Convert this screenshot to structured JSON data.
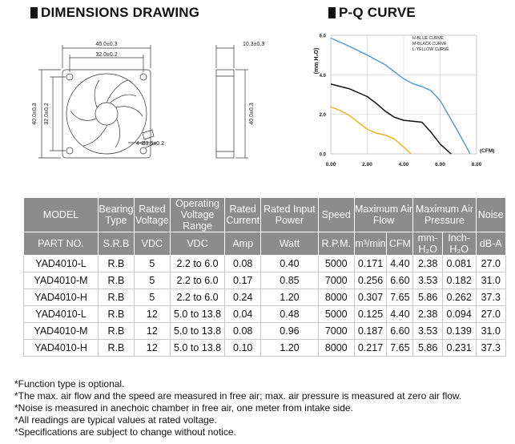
{
  "dimensions": {
    "title": "DIMENSIONS DRAWING",
    "front": {
      "outer_width": "40.0±0.3",
      "hole_spacing": "32.0±0.2",
      "outer_height": "40.0±0.3",
      "hole_spacing_v": "32.0±0.2",
      "holes": "4-Ø3.5±0.2"
    },
    "side": {
      "thickness": "10.3±0.3",
      "height": "40.0±0.3"
    }
  },
  "pq": {
    "title": "P-Q CURVE",
    "ylabel": "(mm H₂O)",
    "xlabel": "(CFM)",
    "y_ticks": [
      "6.0",
      "4.0",
      "2.0",
      "0.0"
    ],
    "x_ticks": [
      "0.00",
      "2.00",
      "4.00",
      "6.00",
      "8.00"
    ],
    "legend": [
      "H-BLUE CURVE",
      "M-BLACK CURVE",
      "L-YELLOW CURVE"
    ],
    "colors": {
      "H": "#5b9bd5",
      "M": "#111111",
      "L": "#f0b323"
    }
  },
  "chart_data": {
    "type": "line",
    "xlabel": "(CFM)",
    "ylabel": "(mm H₂O)",
    "xlim": [
      0,
      8
    ],
    "ylim": [
      0,
      6
    ],
    "series": [
      {
        "name": "H-BLUE CURVE",
        "x": [
          0,
          1,
          2,
          3,
          3.5,
          4,
          4.5,
          5,
          5.5,
          6,
          6.5,
          7,
          7.65
        ],
        "y": [
          5.86,
          5.45,
          5.0,
          4.5,
          4.15,
          3.8,
          3.55,
          3.4,
          3.2,
          2.7,
          1.9,
          1.1,
          0
        ]
      },
      {
        "name": "M-BLACK CURVE",
        "x": [
          0,
          1,
          2,
          2.5,
          3,
          3.5,
          4,
          4.5,
          5,
          5.5,
          6.0,
          6.6
        ],
        "y": [
          3.53,
          3.3,
          2.9,
          2.55,
          2.15,
          1.85,
          1.7,
          1.65,
          1.6,
          1.1,
          0.5,
          0
        ]
      },
      {
        "name": "L-YELLOW CURVE",
        "x": [
          0,
          0.5,
          1.0,
          1.5,
          2.0,
          2.5,
          3.0,
          3.5,
          4.0,
          4.4
        ],
        "y": [
          2.38,
          2.2,
          1.95,
          1.6,
          1.25,
          1.05,
          0.95,
          0.75,
          0.35,
          0
        ]
      }
    ]
  },
  "table": {
    "headers1": [
      "MODEL",
      "Bearing Type",
      "Rated Voltage",
      "Operating Voltage Range",
      "Rated Current",
      "Rated Input Power",
      "Speed",
      "Maximum Air Flow",
      "Maximum Air Pressure",
      "Noise"
    ],
    "headers2": [
      "PART NO.",
      "S.R.B",
      "VDC",
      "VDC",
      "Amp",
      "Watt",
      "R.P.M.",
      "m³/min",
      "CFM",
      "mm-H₂O",
      "Inch-H₂O",
      "dB-A"
    ],
    "rows": [
      [
        "YAD4010-L",
        "R.B",
        "5",
        "2.2 to 6.0",
        "0.08",
        "0.40",
        "5000",
        "0.171",
        "4.40",
        "2.38",
        "0.081",
        "27.0"
      ],
      [
        "YAD4010-M",
        "R.B",
        "5",
        "2.2 to 6.0",
        "0.17",
        "0.85",
        "7000",
        "0.256",
        "6.60",
        "3.53",
        "0.182",
        "31.0"
      ],
      [
        "YAD4010-H",
        "R.B",
        "5",
        "2.2 to 6.0",
        "0.24",
        "1.20",
        "8000",
        "0.307",
        "7.65",
        "5.86",
        "0.262",
        "37.3"
      ],
      [
        "YAD4010-L",
        "R.B",
        "12",
        "5.0 to 13.8",
        "0.04",
        "0.48",
        "5000",
        "0.125",
        "4.40",
        "2.38",
        "0.094",
        "27.0"
      ],
      [
        "YAD4010-M",
        "R.B",
        "12",
        "5.0 to 13.8",
        "0.08",
        "0.96",
        "7000",
        "0.187",
        "6.60",
        "3.53",
        "0.139",
        "31.0"
      ],
      [
        "YAD4010-H",
        "R.B",
        "12",
        "5.0 to 13.8",
        "0.10",
        "1.20",
        "8000",
        "0.217",
        "7.65",
        "5.86",
        "0.231",
        "37.3"
      ]
    ]
  },
  "notes": [
    "*Function type is optional.",
    "*The max. air flow and the speed are measured in free air; max. air pressure is measured at zero air flow.",
    "*Noise is measured in anechoic chamber in free air, one meter from intake side.",
    "*All readings are typical values at rated voltage.",
    "*Specifications are subject to change without notice."
  ]
}
